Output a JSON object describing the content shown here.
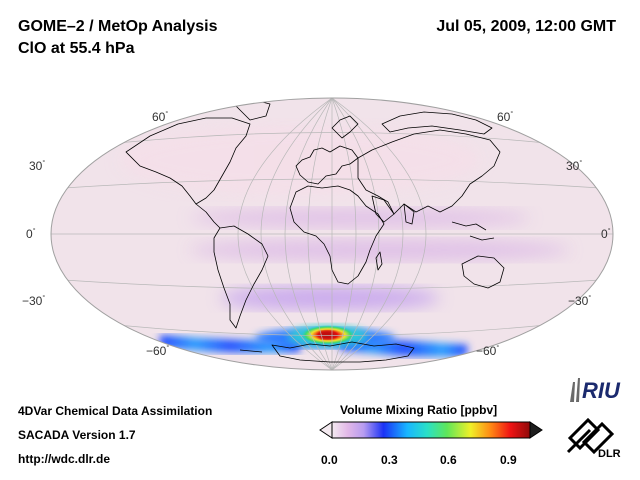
{
  "header": {
    "title_line1": "GOME–2 / MetOp Analysis",
    "title_line2": "ClO at 55.4 hPa",
    "datetime": "Jul 05, 2009, 12:00 GMT"
  },
  "map": {
    "projection": "Hammer-Aitoff",
    "latitude_labels": [
      {
        "value": 60,
        "text": "60",
        "hemisphere": "north",
        "side": "left"
      },
      {
        "value": 60,
        "text": "60",
        "hemisphere": "north",
        "side": "right"
      },
      {
        "value": 30,
        "text": "30",
        "hemisphere": "north",
        "side": "left"
      },
      {
        "value": 30,
        "text": "30",
        "hemisphere": "north",
        "side": "right"
      },
      {
        "value": 0,
        "text": "0",
        "side": "left"
      },
      {
        "value": 0,
        "text": "0",
        "side": "right"
      },
      {
        "value": -30,
        "text": "−30",
        "side": "left"
      },
      {
        "value": -30,
        "text": "−30",
        "side": "right"
      },
      {
        "value": -60,
        "text": "−60",
        "side": "left"
      },
      {
        "value": -60,
        "text": "−60",
        "side": "right"
      }
    ],
    "degree_symbol": "°",
    "colors": {
      "background": "#f1e3ea",
      "graticule": "#b8b8b8",
      "coastline": "#000000"
    }
  },
  "colorbar": {
    "title": "Volume Mixing Ratio [ppbv]",
    "ticks": [
      "0.0",
      "0.3",
      "0.6",
      "0.9"
    ],
    "colors": [
      "#f4eaf0",
      "#e2b8e8",
      "#b79cf0",
      "#1a32f5",
      "#19b6ff",
      "#29e0c8",
      "#5ee65a",
      "#f0f028",
      "#ff8a14",
      "#f01414",
      "#900a0a"
    ]
  },
  "footer": {
    "line1": "4DVar Chemical Data Assimilation",
    "line2": "SACADA Version 1.7",
    "line3": "http://wdc.dlr.de"
  },
  "logos": {
    "riu_text": "RIU",
    "dlr_text": "DLR"
  }
}
